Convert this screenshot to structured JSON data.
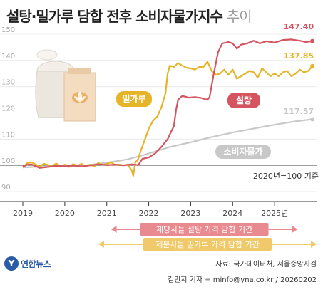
{
  "title": {
    "main": "설탕·밀가루 담합 전후 소비자물가지수",
    "suffix": "추이"
  },
  "chart_data": {
    "type": "line",
    "ylim": [
      90,
      150
    ],
    "yticks": [
      90,
      100,
      110,
      120,
      130,
      140,
      150
    ],
    "x_range": [
      2019.0,
      2026.0
    ],
    "xticks": [
      "2019",
      "2020",
      "2021",
      "2022",
      "2023",
      "2024",
      "2025년"
    ],
    "base_note": "2020년=100 기준",
    "series": [
      {
        "name": "설탕",
        "color": "#d4545f",
        "end_label": "147.40",
        "points": [
          [
            2019.0,
            99.5
          ],
          [
            2019.1,
            100.2
          ],
          [
            2019.2,
            100.4
          ],
          [
            2019.3,
            99.7
          ],
          [
            2019.4,
            99.0
          ],
          [
            2019.6,
            99.4
          ],
          [
            2019.8,
            99.8
          ],
          [
            2020.0,
            99.7
          ],
          [
            2020.2,
            99.9
          ],
          [
            2020.4,
            99.6
          ],
          [
            2020.6,
            100.0
          ],
          [
            2020.8,
            100.4
          ],
          [
            2021.0,
            100.1
          ],
          [
            2021.2,
            100.3
          ],
          [
            2021.4,
            100.0
          ],
          [
            2021.6,
            100.4
          ],
          [
            2021.75,
            100.1
          ],
          [
            2021.85,
            102.5
          ],
          [
            2022.0,
            103.0
          ],
          [
            2022.15,
            104.5
          ],
          [
            2022.3,
            107.0
          ],
          [
            2022.45,
            110.0
          ],
          [
            2022.6,
            115.0
          ],
          [
            2022.65,
            121.0
          ],
          [
            2022.7,
            125.0
          ],
          [
            2022.8,
            126.5
          ],
          [
            2022.95,
            125.8
          ],
          [
            2023.1,
            126.0
          ],
          [
            2023.25,
            125.7
          ],
          [
            2023.4,
            125.0
          ],
          [
            2023.45,
            126.0
          ],
          [
            2023.55,
            135.0
          ],
          [
            2023.65,
            143.0
          ],
          [
            2023.75,
            146.5
          ],
          [
            2023.9,
            147.0
          ],
          [
            2024.0,
            146.5
          ],
          [
            2024.1,
            144.5
          ],
          [
            2024.2,
            146.0
          ],
          [
            2024.35,
            146.5
          ],
          [
            2024.5,
            147.5
          ],
          [
            2024.65,
            146.5
          ],
          [
            2024.8,
            147.3
          ],
          [
            2025.0,
            146.8
          ],
          [
            2025.2,
            147.8
          ],
          [
            2025.4,
            148.0
          ],
          [
            2025.6,
            147.5
          ],
          [
            2025.75,
            147.0
          ],
          [
            2025.9,
            147.4
          ]
        ]
      },
      {
        "name": "밀가루",
        "color": "#e6b429",
        "end_label": "137.85",
        "points": [
          [
            2019.0,
            99.2
          ],
          [
            2019.1,
            100.8
          ],
          [
            2019.2,
            101.2
          ],
          [
            2019.3,
            100.4
          ],
          [
            2019.4,
            99.5
          ],
          [
            2019.5,
            100.6
          ],
          [
            2019.6,
            100.2
          ],
          [
            2019.7,
            99.8
          ],
          [
            2019.8,
            100.7
          ],
          [
            2019.9,
            99.6
          ],
          [
            2020.0,
            100.3
          ],
          [
            2020.1,
            99.4
          ],
          [
            2020.2,
            100.5
          ],
          [
            2020.3,
            99.8
          ],
          [
            2020.4,
            100.6
          ],
          [
            2020.5,
            99.5
          ],
          [
            2020.6,
            100.3
          ],
          [
            2020.7,
            99.6
          ],
          [
            2020.8,
            100.9
          ],
          [
            2020.9,
            100.2
          ],
          [
            2021.0,
            100.5
          ],
          [
            2021.1,
            101.2
          ],
          [
            2021.2,
            100.1
          ],
          [
            2021.3,
            100.3
          ],
          [
            2021.4,
            100.0
          ],
          [
            2021.5,
            100.3
          ],
          [
            2021.6,
            98.0
          ],
          [
            2021.63,
            96.0
          ],
          [
            2021.68,
            101.0
          ],
          [
            2021.75,
            102.5
          ],
          [
            2021.82,
            106.0
          ],
          [
            2021.9,
            109.5
          ],
          [
            2022.0,
            114.0
          ],
          [
            2022.1,
            117.0
          ],
          [
            2022.2,
            118.5
          ],
          [
            2022.3,
            122.0
          ],
          [
            2022.4,
            127.5
          ],
          [
            2022.45,
            135.0
          ],
          [
            2022.5,
            138.0
          ],
          [
            2022.6,
            137.5
          ],
          [
            2022.7,
            139.0
          ],
          [
            2022.8,
            138.0
          ],
          [
            2022.9,
            137.2
          ],
          [
            2023.0,
            137.0
          ],
          [
            2023.1,
            136.5
          ],
          [
            2023.2,
            137.5
          ],
          [
            2023.3,
            137.5
          ],
          [
            2023.4,
            139.5
          ],
          [
            2023.5,
            136.0
          ],
          [
            2023.6,
            134.5
          ],
          [
            2023.7,
            135.0
          ],
          [
            2023.8,
            136.5
          ],
          [
            2023.9,
            134.5
          ],
          [
            2024.0,
            136.5
          ],
          [
            2024.1,
            133.0
          ],
          [
            2024.2,
            134.0
          ],
          [
            2024.3,
            135.0
          ],
          [
            2024.4,
            136.0
          ],
          [
            2024.5,
            135.5
          ],
          [
            2024.6,
            133.5
          ],
          [
            2024.7,
            137.0
          ],
          [
            2024.8,
            135.5
          ],
          [
            2024.9,
            134.0
          ],
          [
            2025.0,
            135.0
          ],
          [
            2025.1,
            134.0
          ],
          [
            2025.2,
            135.5
          ],
          [
            2025.3,
            136.0
          ],
          [
            2025.4,
            134.0
          ],
          [
            2025.5,
            135.0
          ],
          [
            2025.6,
            136.5
          ],
          [
            2025.7,
            135.5
          ],
          [
            2025.8,
            136.0
          ],
          [
            2025.9,
            137.85
          ]
        ]
      },
      {
        "name": "소비자물가",
        "color": "#c8c8c8",
        "end_label": "117.57",
        "points": [
          [
            2019.0,
            99.2
          ],
          [
            2019.5,
            99.6
          ],
          [
            2020.0,
            99.7
          ],
          [
            2020.5,
            100.0
          ],
          [
            2021.0,
            101.0
          ],
          [
            2021.5,
            102.3
          ],
          [
            2022.0,
            104.5
          ],
          [
            2022.5,
            107.0
          ],
          [
            2023.0,
            108.8
          ],
          [
            2023.5,
            110.8
          ],
          [
            2024.0,
            112.5
          ],
          [
            2024.5,
            114.0
          ],
          [
            2025.0,
            115.5
          ],
          [
            2025.5,
            116.8
          ],
          [
            2025.9,
            117.57
          ]
        ]
      }
    ],
    "periods": [
      {
        "label": "제당사들 설탕 가격 담합 기간",
        "start": 2021.1,
        "end": 2025.55,
        "color": "#e88a8f"
      },
      {
        "label": "제분사들 밀가루 가격 담합 기간",
        "start": 2020.8,
        "end": 2026.0,
        "color": "#f0c96b"
      }
    ]
  },
  "footer": {
    "logo_mark": "Y",
    "logo_text": "연합뉴스",
    "source": "자료: 국가데이터처, 서울중앙지검",
    "credit": "김민지 기자 = minfo@yna.co.kr / 20260202"
  }
}
